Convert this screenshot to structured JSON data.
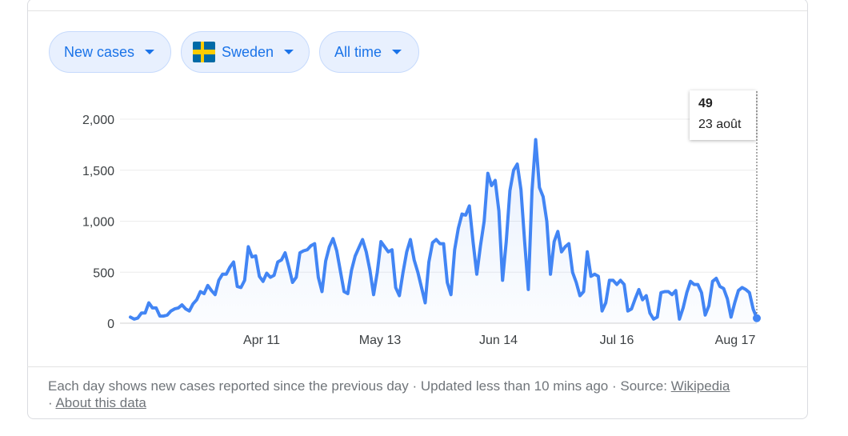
{
  "filters": {
    "metric": "New cases",
    "country": "Sweden",
    "range": "All time"
  },
  "tooltip": {
    "value": "49",
    "date": "23 août"
  },
  "footer": {
    "description": "Each day shows new cases reported since the previous day · Updated less than 10 mins ago",
    "source_label": "Source:",
    "source_link": "Wikipedia",
    "about_link": "About this data"
  },
  "colors": {
    "line": "#4285f4",
    "chip_text": "#1a73e8",
    "chip_bg": "#e8f0fe"
  },
  "chart_data": {
    "type": "area",
    "series": [
      {
        "values": [
          60,
          40,
          50,
          100,
          100,
          200,
          150,
          150,
          70,
          70,
          80,
          120,
          140,
          150,
          180,
          140,
          120,
          190,
          230,
          310,
          290,
          370,
          320,
          280,
          420,
          480,
          480,
          550,
          600,
          360,
          350,
          420,
          750,
          650,
          660,
          460,
          410,
          490,
          450,
          470,
          600,
          620,
          690,
          550,
          400,
          450,
          690,
          710,
          720,
          760,
          780,
          450,
          310,
          610,
          750,
          830,
          710,
          510,
          310,
          290,
          520,
          660,
          740,
          820,
          700,
          520,
          280,
          500,
          800,
          750,
          700,
          720,
          350,
          270,
          500,
          700,
          820,
          620,
          500,
          350,
          200,
          600,
          790,
          820,
          780,
          780,
          400,
          280,
          720,
          930,
          1070,
          1060,
          1150,
          800,
          480,
          760,
          1000,
          1470,
          1350,
          1400,
          1100,
          420,
          800,
          1300,
          1500,
          1560,
          1310,
          800,
          330,
          1300,
          1800,
          1330,
          1240,
          1000,
          480,
          800,
          900,
          700,
          750,
          780,
          500,
          400,
          270,
          310,
          700,
          460,
          480,
          460,
          120,
          200,
          420,
          420,
          380,
          420,
          380,
          120,
          140,
          240,
          330,
          230,
          270,
          100,
          40,
          60,
          300,
          310,
          310,
          280,
          320,
          40,
          150,
          300,
          410,
          380,
          380,
          300,
          80,
          170,
          410,
          440,
          360,
          340,
          240,
          60,
          200,
          320,
          350,
          330,
          300,
          140,
          49
        ]
      }
    ],
    "x_ticks": [
      "Apr 11",
      "May 13",
      "Jun 14",
      "Jul 16",
      "Aug 17"
    ],
    "y_ticks": [
      "0",
      "500",
      "1,000",
      "1,500",
      "2,000"
    ],
    "ylim": [
      0,
      2000
    ],
    "grid": true
  }
}
